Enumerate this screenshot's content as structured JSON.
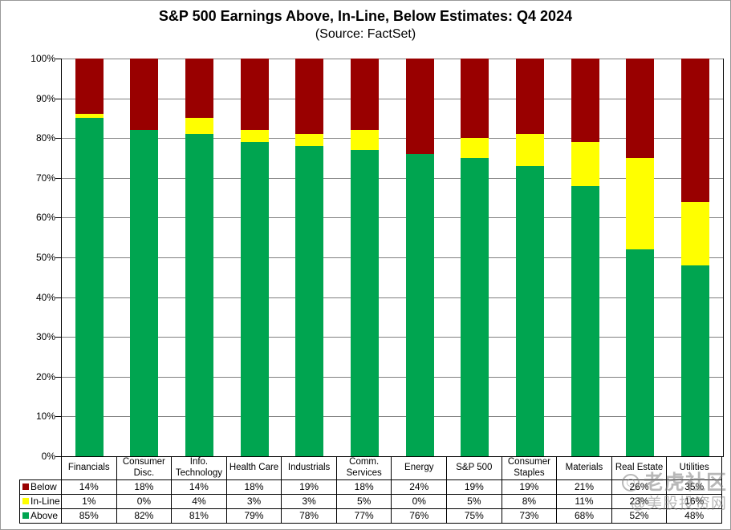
{
  "title": "S&P 500 Earnings Above, In-Line, Below Estimates: Q4 2024",
  "subtitle": "(Source: FactSet)",
  "watermark": {
    "line1": "老虎社区",
    "line2": "@美股投资网"
  },
  "colors": {
    "below": "#990000",
    "inline": "#FFFF00",
    "above": "#00A550",
    "gridline": "#808080"
  },
  "chart_data": {
    "type": "bar",
    "stacked": true,
    "title": "S&P 500 Earnings Above, In-Line, Below Estimates: Q4 2024",
    "subtitle": "(Source: FactSet)",
    "categories": [
      "Financials",
      "Consumer Disc.",
      "Info. Technology",
      "Health Care",
      "Industrials",
      "Comm. Services",
      "Energy",
      "S&P 500",
      "Consumer Staples",
      "Materials",
      "Real Estate",
      "Utilities"
    ],
    "series": [
      {
        "name": "Below",
        "color": "#990000",
        "values": [
          14,
          18,
          14,
          18,
          19,
          18,
          24,
          19,
          19,
          21,
          26,
          35
        ]
      },
      {
        "name": "In-Line",
        "color": "#FFFF00",
        "values": [
          1,
          0,
          4,
          3,
          3,
          5,
          0,
          5,
          8,
          11,
          23,
          16
        ]
      },
      {
        "name": "Above",
        "color": "#00A550",
        "values": [
          85,
          82,
          81,
          79,
          78,
          77,
          76,
          75,
          73,
          68,
          52,
          48
        ]
      }
    ],
    "value_format": "{v}%",
    "xlabel": "",
    "ylabel": "",
    "ylim": [
      0,
      100
    ],
    "yticks": [
      "0%",
      "10%",
      "20%",
      "30%",
      "40%",
      "50%",
      "60%",
      "70%",
      "80%",
      "90%",
      "100%"
    ],
    "grid": true,
    "legend_position": "table-left",
    "stack_order_bottom_to_top": [
      "Above",
      "In-Line",
      "Below"
    ]
  }
}
